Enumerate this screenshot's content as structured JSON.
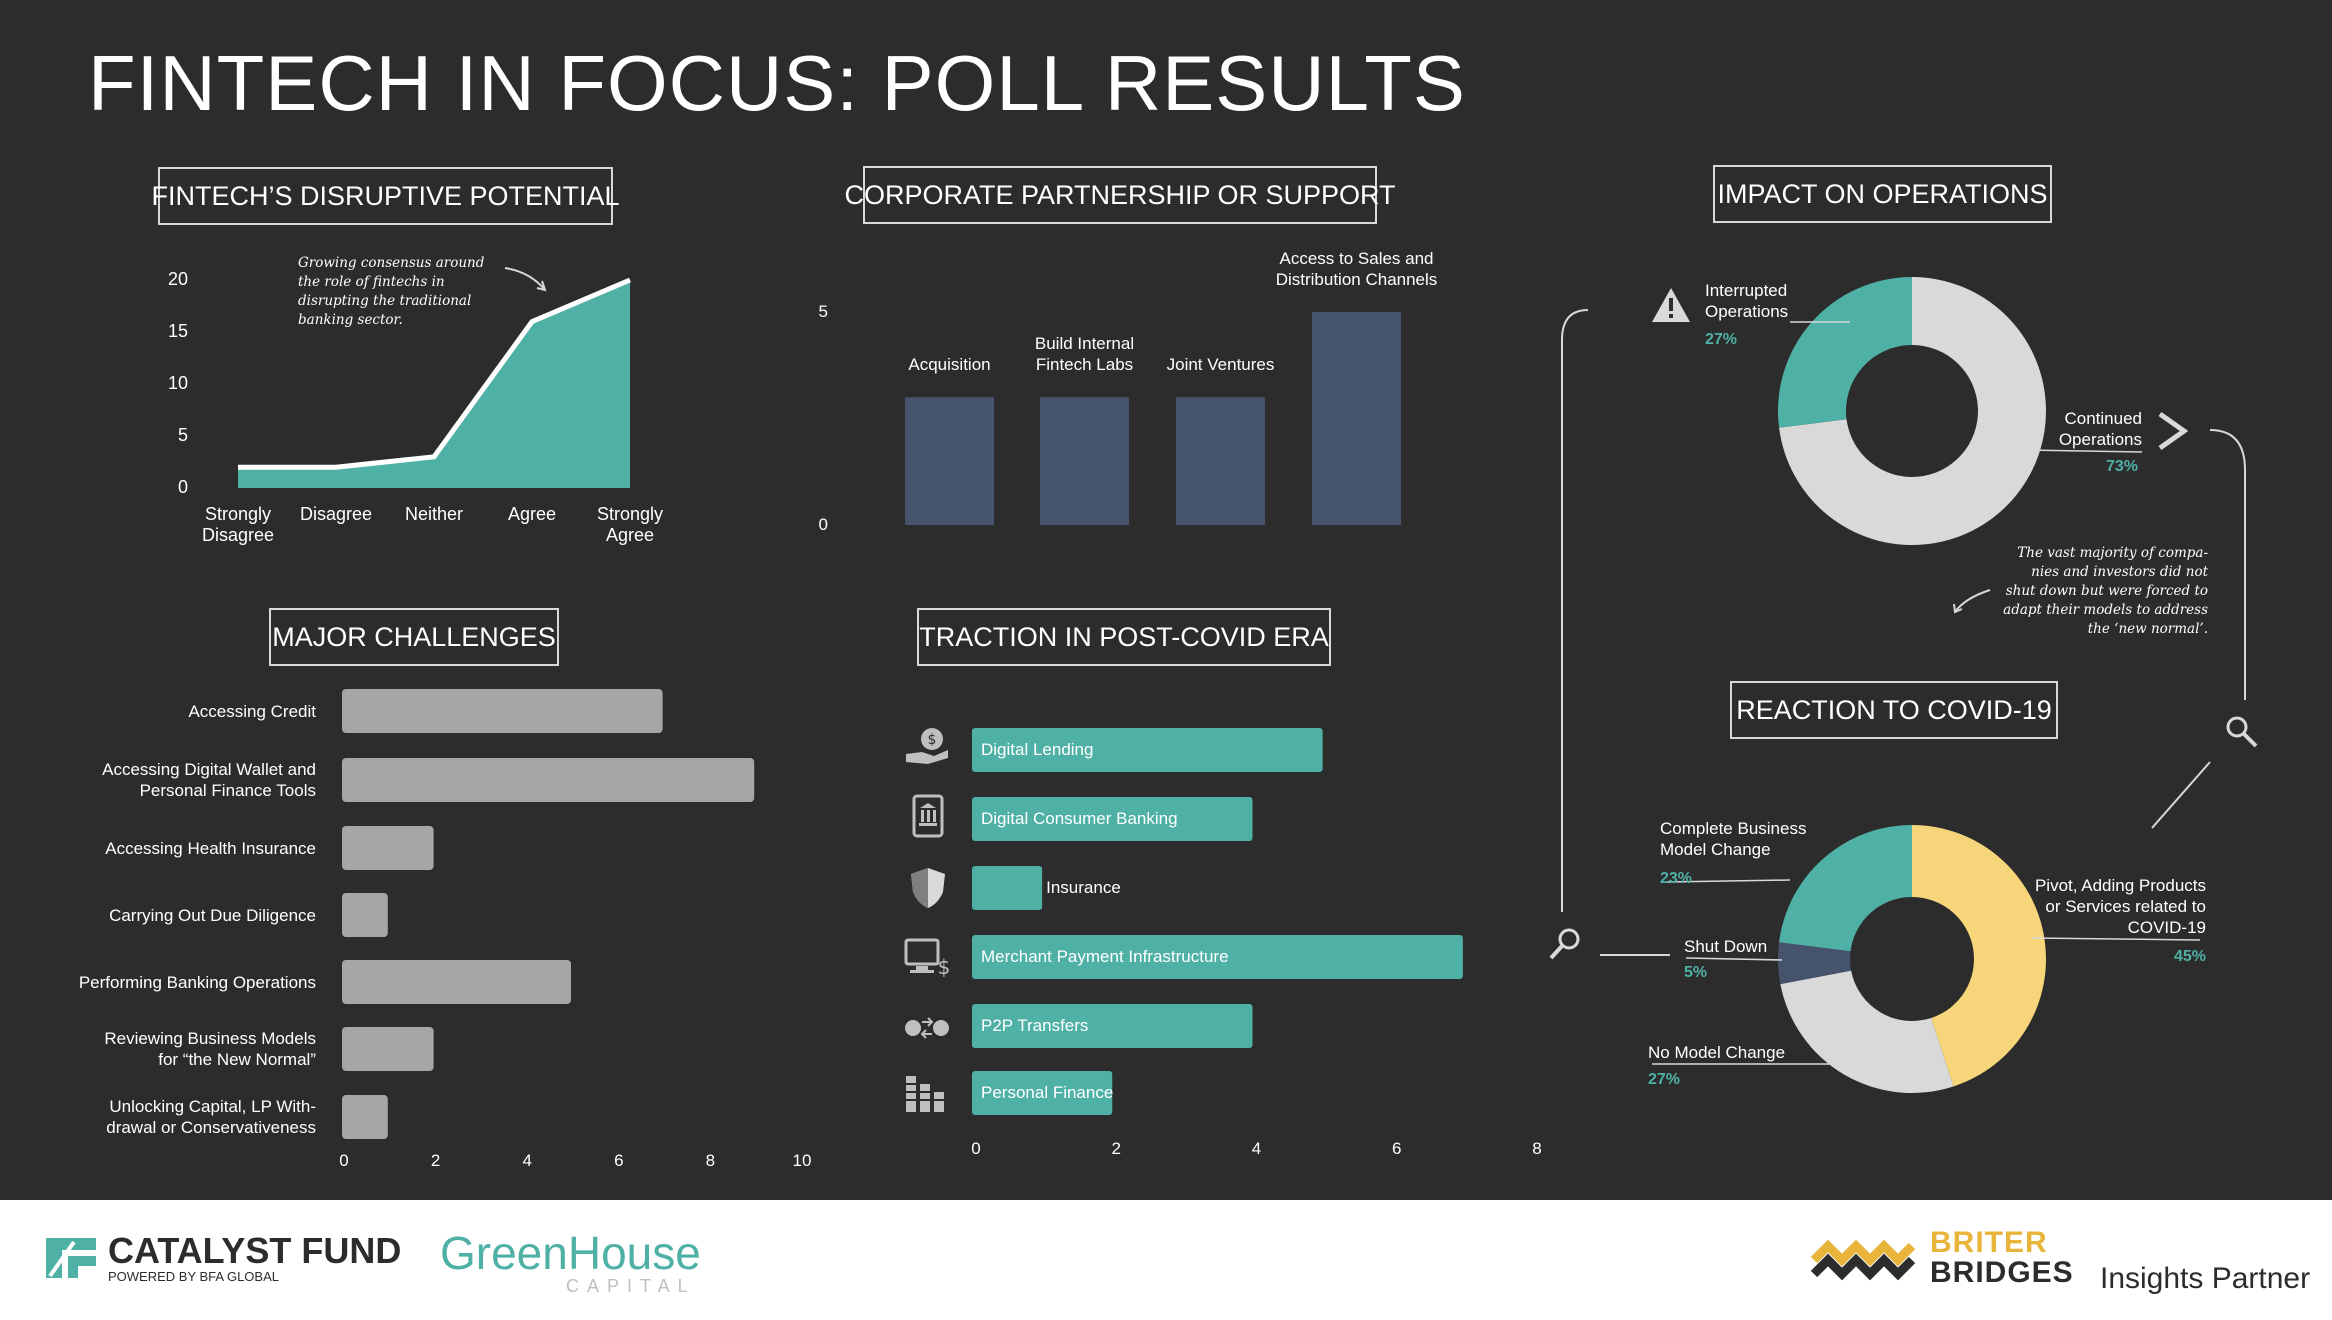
{
  "title": "FINTECH IN FOCUS: POLL RESULTS",
  "colors": {
    "bg": "#2c2c2c",
    "teal": "#4fb0a5",
    "navy": "#45546c",
    "gray": "#a6a6a6",
    "light": "#d9d9d9",
    "yellow": "#f7d57a",
    "footer": "#ffffff"
  },
  "panels": {
    "disruptive": "FINTECH’S DISRUPTIVE POTENTIAL",
    "partnership": "CORPORATE PARTNERSHIP OR SUPPORT",
    "impact": "IMPACT ON OPERATIONS",
    "challenges": "MAJOR CHALLENGES",
    "traction": "TRACTION IN POST-COVID ERA",
    "reaction": "REACTION TO COVID-19"
  },
  "notes": {
    "disruptive": [
      "Growing consensus around",
      "the role of fintechs in",
      "disrupting the traditional",
      "banking sector."
    ],
    "impact": [
      "The vast majority of compa-",
      "nies and investors did not",
      "shut down but were forced to",
      "adapt their models to address",
      "the ‘new normal’."
    ]
  },
  "chart_data": [
    {
      "type": "area",
      "x": [
        [
          "Strongly",
          "Disagree"
        ],
        [
          "Disagree"
        ],
        [
          "Neither"
        ],
        [
          "Agree"
        ],
        [
          "Strongly",
          "Agree"
        ]
      ],
      "values": [
        2,
        2,
        3,
        16,
        20
      ],
      "yticks": [
        0,
        5,
        10,
        15,
        20
      ],
      "ylim": [
        0,
        20
      ]
    },
    {
      "type": "bar",
      "categories": [
        [
          "Acquisition"
        ],
        [
          "Build Internal",
          "Fintech Labs"
        ],
        [
          "Joint Ventures"
        ],
        [
          "Access to Sales and",
          "Distribution Channels"
        ]
      ],
      "values": [
        3,
        3,
        3,
        5
      ],
      "yticks": [
        0,
        5
      ],
      "ylim": [
        0,
        5
      ]
    },
    {
      "type": "pie",
      "slices": [
        {
          "label": [
            "Interrupted",
            "Operations"
          ],
          "pct": "27%",
          "value": 27,
          "color": "#4fb0a5"
        },
        {
          "label": [
            "Continued",
            "Operations"
          ],
          "pct": "73%",
          "value": 73,
          "color": "#d9d9d9"
        }
      ]
    },
    {
      "type": "bar",
      "orientation": "horizontal",
      "categories": [
        [
          "Accessing Credit"
        ],
        [
          "Accessing Digital Wallet and",
          "Personal Finance Tools"
        ],
        [
          "Accessing Health Insurance"
        ],
        [
          "Carrying Out Due Diligence"
        ],
        [
          "Performing Banking Operations"
        ],
        [
          "Reviewing Business Models",
          "for “the New Normal”"
        ],
        [
          "Unlocking Capital, LP With-",
          "drawal or Conservativeness"
        ]
      ],
      "values": [
        7,
        9,
        2,
        1,
        5,
        2,
        1
      ],
      "xticks": [
        0,
        2,
        4,
        6,
        8,
        10
      ],
      "xlim": [
        0,
        10
      ]
    },
    {
      "type": "bar",
      "orientation": "horizontal",
      "categories": [
        "Digital Lending",
        "Digital Consumer Banking",
        "Insurance",
        "Merchant Payment Infrastructure",
        "P2P Transfers",
        "Personal Finance"
      ],
      "icons": [
        "money-hand-icon",
        "bank-phone-icon",
        "shield-icon",
        "payment-terminal-icon",
        "money-transfer-icon",
        "coin-stack-icon"
      ],
      "values": [
        5,
        4,
        1,
        7,
        4,
        2
      ],
      "xticks": [
        0,
        2,
        4,
        6,
        8
      ],
      "xlim": [
        0,
        8
      ]
    },
    {
      "type": "pie",
      "slices": [
        {
          "label": [
            "Pivot, Adding Products",
            "or Services related to",
            "COVID-19"
          ],
          "pct": "45%",
          "value": 45,
          "color": "#f7d57a"
        },
        {
          "label": [
            "No Model Change"
          ],
          "pct": "27%",
          "value": 27,
          "color": "#d9d9d9"
        },
        {
          "label": [
            "Shut Down"
          ],
          "pct": "5%",
          "value": 5,
          "color": "#45546c"
        },
        {
          "label": [
            "Complete Business",
            "Model Change"
          ],
          "pct": "23%",
          "value": 23,
          "color": "#4fb0a5"
        }
      ]
    }
  ],
  "footer": {
    "catalyst_name": "CATALYST FUND",
    "catalyst_sub": "POWERED BY BFA GLOBAL",
    "greenhouse": "GreenHouse",
    "greenhouse_sub": "CAPITAL",
    "briter1": "BRITER",
    "briter2": "BRIDGES",
    "partner": "Insights Partner"
  }
}
